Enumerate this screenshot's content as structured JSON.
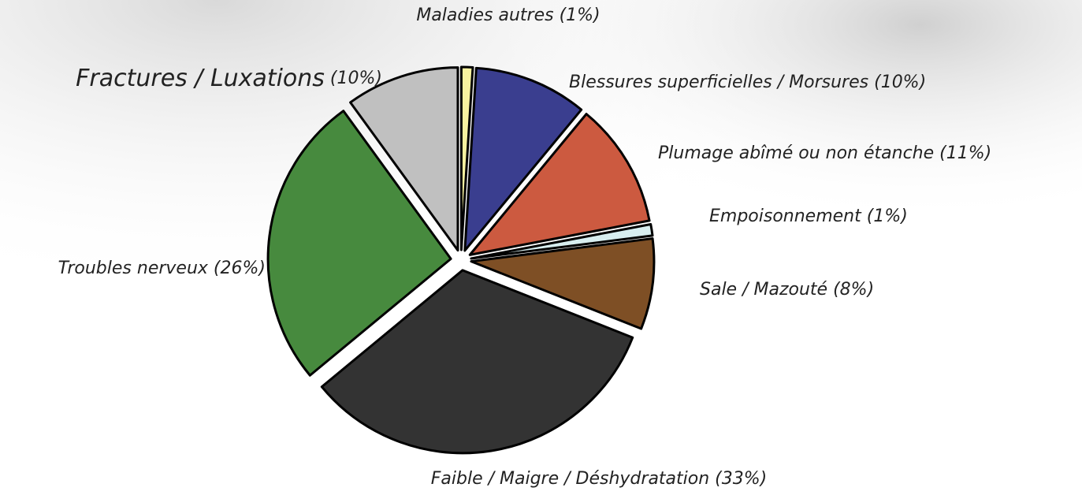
{
  "chart_data": {
    "type": "pie",
    "categories": [
      "Maladies autres",
      "Blessures superficielles / Morsures",
      "Plumage abîmé ou non étanche",
      "Empoisonnement",
      "Sale / Mazouté",
      "Faible / Maigre / Déshydratation",
      "Troubles nerveux",
      "Fractures / Luxations"
    ],
    "values": [
      1,
      10,
      11,
      1,
      8,
      33,
      26,
      10
    ],
    "value_labels": [
      "(1%)",
      "(10%)",
      "(11%)",
      "(1%)",
      "(8%)",
      "(33%)",
      "(26%)",
      "(10%)"
    ],
    "colors": [
      "#f7f2a0",
      "#3a3e8f",
      "#cc5a40",
      "#d8eef0",
      "#7e4f25",
      "#333333",
      "#478a3e",
      "#c0c0c0"
    ]
  }
}
